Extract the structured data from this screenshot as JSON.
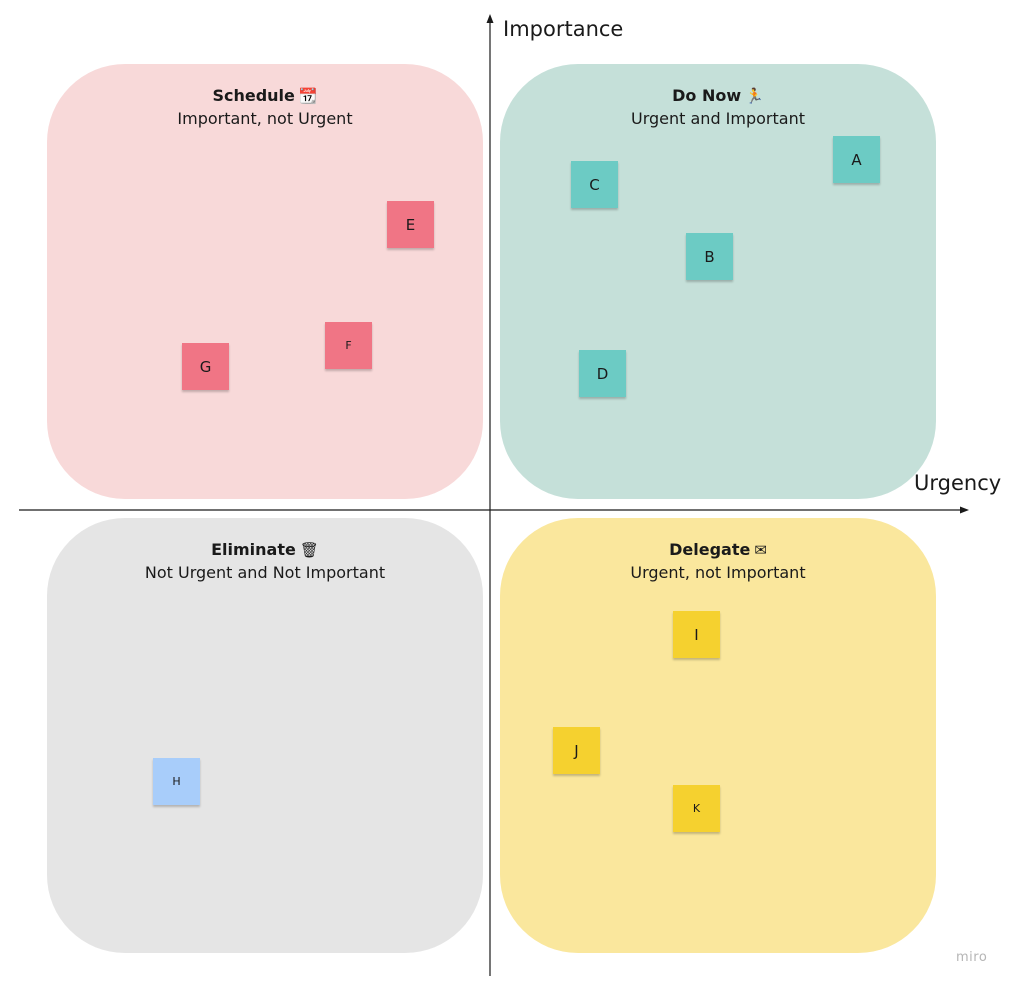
{
  "axes": {
    "y_label": "Importance",
    "x_label": "Urgency",
    "line_color": "#1a1a1a"
  },
  "quadrants": {
    "schedule": {
      "title": "Schedule",
      "emoji": "📆",
      "subtitle": "Important, not Urgent",
      "color": "#f8d9d9"
    },
    "do_now": {
      "title": "Do Now",
      "emoji": "🏃",
      "subtitle": "Urgent and Important",
      "color": "#c5e0d9"
    },
    "eliminate": {
      "title": "Eliminate",
      "emoji": "🗑",
      "subtitle": "Not Urgent and Not Important",
      "color": "#e5e5e5"
    },
    "delegate": {
      "title": "Delegate",
      "emoji": "✉",
      "subtitle": "Urgent, not Important",
      "color": "#fae79d"
    }
  },
  "stickies": {
    "A": {
      "label": "A",
      "color": "#6ccbc4"
    },
    "B": {
      "label": "B",
      "color": "#6ccbc4"
    },
    "C": {
      "label": "C",
      "color": "#6ccbc4"
    },
    "D": {
      "label": "D",
      "color": "#6ccbc4"
    },
    "E": {
      "label": "E",
      "color": "#f07585"
    },
    "F": {
      "label": "F",
      "color": "#f07585"
    },
    "G": {
      "label": "G",
      "color": "#f07585"
    },
    "H": {
      "label": "H",
      "color": "#a8cdfa"
    },
    "I": {
      "label": "I",
      "color": "#f5d12f"
    },
    "J": {
      "label": "J",
      "color": "#f5d12f"
    },
    "K": {
      "label": "K",
      "color": "#f5d12f"
    }
  },
  "branding": {
    "logo_text": "miro"
  }
}
